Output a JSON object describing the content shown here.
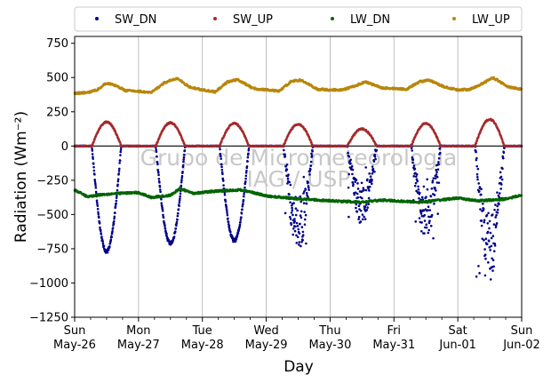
{
  "chart_data": {
    "type": "scatter",
    "xlabel": "Day",
    "ylabel": "Radiation (Wm⁻²)",
    "ylim": [
      -1250,
      800
    ],
    "yticks": [
      750,
      500,
      250,
      0,
      -250,
      -500,
      -750,
      -1000,
      -1250
    ],
    "xlim": [
      "2024-05-26",
      "2024-06-02"
    ],
    "xticks": [
      {
        "date": "2024-05-26",
        "line1": "Sun",
        "line2": "May-26"
      },
      {
        "date": "2024-05-27",
        "line1": "Mon",
        "line2": "May-27"
      },
      {
        "date": "2024-05-28",
        "line1": "Tue",
        "line2": "May-28"
      },
      {
        "date": "2024-05-29",
        "line1": "Wed",
        "line2": "May-29"
      },
      {
        "date": "2024-05-30",
        "line1": "Thu",
        "line2": "May-30"
      },
      {
        "date": "2024-05-31",
        "line1": "Fri",
        "line2": "May-31"
      },
      {
        "date": "2024-06-01",
        "line1": "Sat",
        "line2": "Jun-01"
      },
      {
        "date": "2024-06-02",
        "line1": "Sun",
        "line2": "Jun-02"
      }
    ],
    "grid": "vertical",
    "zero_line": true,
    "legend_position": "top",
    "watermark": [
      "Grupo de Micrometeorologia",
      "IAG / USP"
    ],
    "series": [
      {
        "name": "SW_DN",
        "color": "#00008b",
        "daily": [
          {
            "day": 0,
            "peak": -770,
            "noisy": false
          },
          {
            "day": 1,
            "peak": -710,
            "noisy": false
          },
          {
            "day": 2,
            "peak": -690,
            "noisy": false
          },
          {
            "day": 3,
            "peak": -720,
            "noisy": true
          },
          {
            "day": 4,
            "peak": -520,
            "noisy": true
          },
          {
            "day": 5,
            "peak": -650,
            "noisy": true
          },
          {
            "day": 6,
            "peak": -870,
            "noisy": true
          }
        ]
      },
      {
        "name": "SW_UP",
        "color": "#a52a2a",
        "daily": [
          {
            "day": 0,
            "peak": 175
          },
          {
            "day": 1,
            "peak": 170
          },
          {
            "day": 2,
            "peak": 165
          },
          {
            "day": 3,
            "peak": 160
          },
          {
            "day": 4,
            "peak": 125
          },
          {
            "day": 5,
            "peak": 165
          },
          {
            "day": 6,
            "peak": 195
          }
        ]
      },
      {
        "name": "LW_DN",
        "color": "#006400",
        "points": [
          [
            0.0,
            -320
          ],
          [
            0.2,
            -370
          ],
          [
            0.4,
            -355
          ],
          [
            0.7,
            -345
          ],
          [
            1.0,
            -340
          ],
          [
            1.2,
            -375
          ],
          [
            1.5,
            -360
          ],
          [
            1.65,
            -310
          ],
          [
            1.85,
            -345
          ],
          [
            2.2,
            -330
          ],
          [
            2.6,
            -320
          ],
          [
            2.8,
            -340
          ],
          [
            3.0,
            -365
          ],
          [
            3.5,
            -385
          ],
          [
            4.0,
            -400
          ],
          [
            4.5,
            -410
          ],
          [
            4.8,
            -395
          ],
          [
            5.0,
            -400
          ],
          [
            5.4,
            -410
          ],
          [
            5.7,
            -395
          ],
          [
            6.0,
            -380
          ],
          [
            6.3,
            -400
          ],
          [
            6.7,
            -390
          ],
          [
            7.0,
            -360
          ]
        ]
      },
      {
        "name": "LW_UP",
        "color": "#b8860b",
        "points": [
          [
            0.0,
            385
          ],
          [
            0.2,
            390
          ],
          [
            0.35,
            410
          ],
          [
            0.5,
            460
          ],
          [
            0.65,
            440
          ],
          [
            0.8,
            405
          ],
          [
            1.0,
            400
          ],
          [
            1.2,
            390
          ],
          [
            1.4,
            460
          ],
          [
            1.6,
            495
          ],
          [
            1.8,
            430
          ],
          [
            2.0,
            410
          ],
          [
            2.2,
            395
          ],
          [
            2.4,
            470
          ],
          [
            2.55,
            485
          ],
          [
            2.8,
            420
          ],
          [
            3.0,
            410
          ],
          [
            3.2,
            400
          ],
          [
            3.4,
            475
          ],
          [
            3.55,
            480
          ],
          [
            3.8,
            415
          ],
          [
            4.0,
            410
          ],
          [
            4.2,
            410
          ],
          [
            4.4,
            440
          ],
          [
            4.55,
            470
          ],
          [
            4.8,
            425
          ],
          [
            5.0,
            420
          ],
          [
            5.2,
            415
          ],
          [
            5.4,
            470
          ],
          [
            5.55,
            480
          ],
          [
            5.8,
            430
          ],
          [
            6.0,
            410
          ],
          [
            6.2,
            415
          ],
          [
            6.4,
            460
          ],
          [
            6.55,
            500
          ],
          [
            6.8,
            430
          ],
          [
            7.0,
            415
          ]
        ]
      }
    ]
  }
}
